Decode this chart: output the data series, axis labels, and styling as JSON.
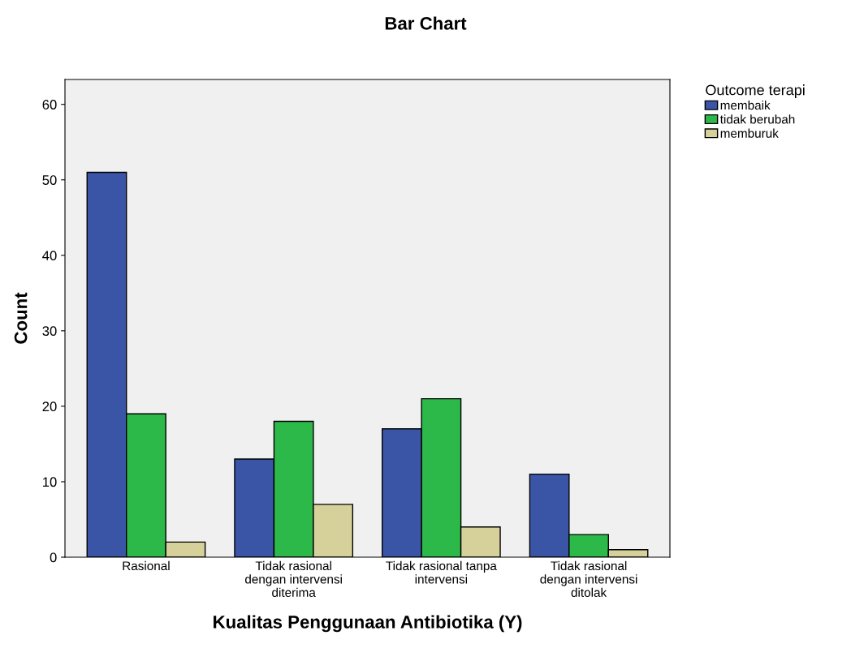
{
  "chart_data": {
    "type": "bar",
    "title": "Bar Chart",
    "xlabel": "Kualitas Penggunaan Antibiotika (Y)",
    "ylabel": "Count",
    "legend_title": "Outcome terapi",
    "categories": [
      "Rasional",
      "Tidak rasional\ndengan intervensi\nditerima",
      "Tidak rasional tanpa\nintervensi",
      "Tidak rasional\ndengan intervensi\nditolak"
    ],
    "series": [
      {
        "name": "membaik",
        "color": "#3a55a6",
        "values": [
          51,
          13,
          17,
          11
        ]
      },
      {
        "name": "tidak berubah",
        "color": "#2db84a",
        "values": [
          19,
          18,
          21,
          3
        ]
      },
      {
        "name": "memburuk",
        "color": "#d6d19a",
        "values": [
          2,
          7,
          4,
          1
        ]
      }
    ],
    "ylim": [
      0,
      63.3
    ],
    "yticks": [
      0,
      10,
      20,
      30,
      40,
      50,
      60
    ],
    "grid": false,
    "legend": "right"
  }
}
